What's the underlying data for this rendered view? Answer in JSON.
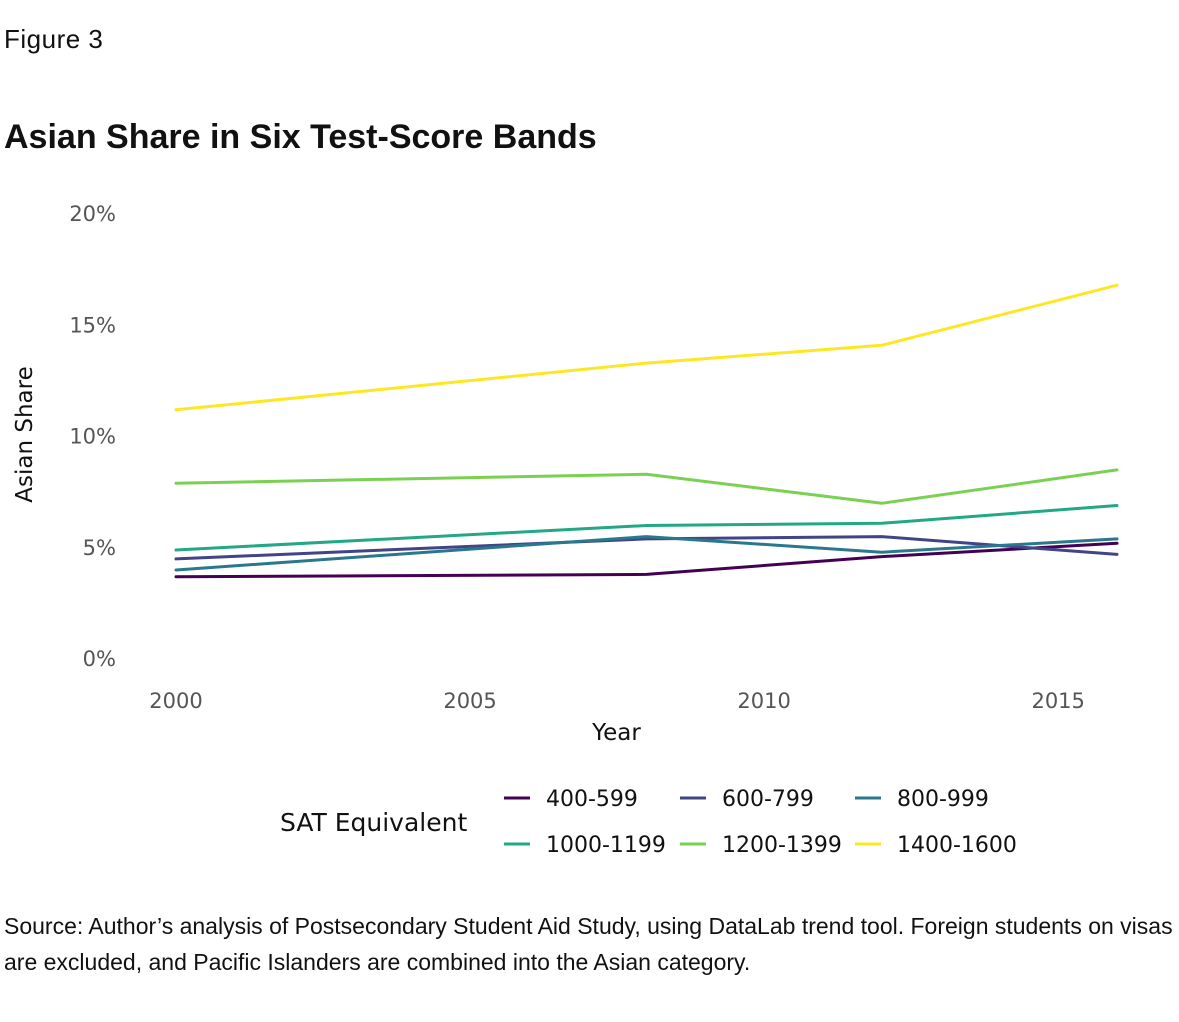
{
  "figure": {
    "label": "Figure 3",
    "title": "Asian Share in Six Test-Score Bands",
    "source": "Source: Author’s analysis of Postsecondary Student Aid Study, using DataLab trend tool. Foreign students on visas are excluded, and Pacific Islanders are combined into the Asian category."
  },
  "chart_data": {
    "type": "line",
    "title": "Asian Share in Six Test-Score Bands",
    "xlabel": "Year",
    "ylabel": "Asian Share",
    "xlim": [
      2000,
      2016
    ],
    "ylim": [
      0,
      20
    ],
    "x_ticks": [
      2000,
      2005,
      2010,
      2015
    ],
    "x_tick_labels": [
      "2000",
      "2005",
      "2010",
      "2015"
    ],
    "y_ticks": [
      0,
      5,
      10,
      15,
      20
    ],
    "y_tick_labels": [
      "0%",
      "5%",
      "10%",
      "15%",
      "20%"
    ],
    "grid": false,
    "legend_title": "SAT Equivalent",
    "legend_position": "bottom",
    "x": [
      2000,
      2008,
      2012,
      2016
    ],
    "series": [
      {
        "name": "400-599",
        "color": "#440154",
        "values": [
          3.7,
          3.8,
          4.6,
          5.2
        ]
      },
      {
        "name": "600-799",
        "color": "#414487",
        "values": [
          4.5,
          5.4,
          5.5,
          4.7
        ]
      },
      {
        "name": "800-999",
        "color": "#2a788e",
        "values": [
          4.0,
          5.5,
          4.8,
          5.4
        ]
      },
      {
        "name": "1000-1199",
        "color": "#22a884",
        "values": [
          4.9,
          6.0,
          6.1,
          6.9
        ]
      },
      {
        "name": "1200-1399",
        "color": "#7ad151",
        "values": [
          7.9,
          8.3,
          7.0,
          8.5
        ]
      },
      {
        "name": "1400-1600",
        "color": "#fde725",
        "values": [
          11.2,
          13.3,
          14.1,
          16.8
        ]
      }
    ]
  }
}
